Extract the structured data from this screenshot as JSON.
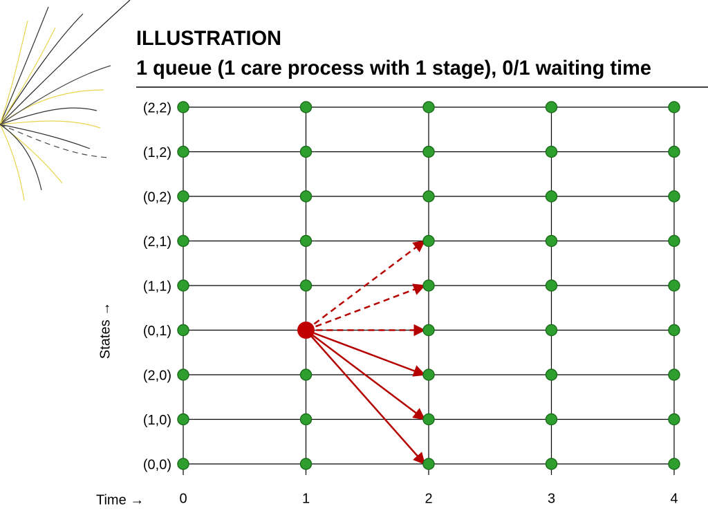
{
  "header": {
    "title": [
      "ILLUSTRATION",
      "1 queue (1 care process with 1 stage), 0/1 waiting time"
    ]
  },
  "y_axis": {
    "label": "States →",
    "states": [
      "(2,2)",
      "(1,2)",
      "(0,2)",
      "(2,1)",
      "(1,1)",
      "(0,1)",
      "(2,0)",
      "(1,0)",
      "(0,0)"
    ]
  },
  "x_axis": {
    "label": "Time →",
    "times": [
      "0",
      "1",
      "2",
      "3",
      "4"
    ]
  }
}
